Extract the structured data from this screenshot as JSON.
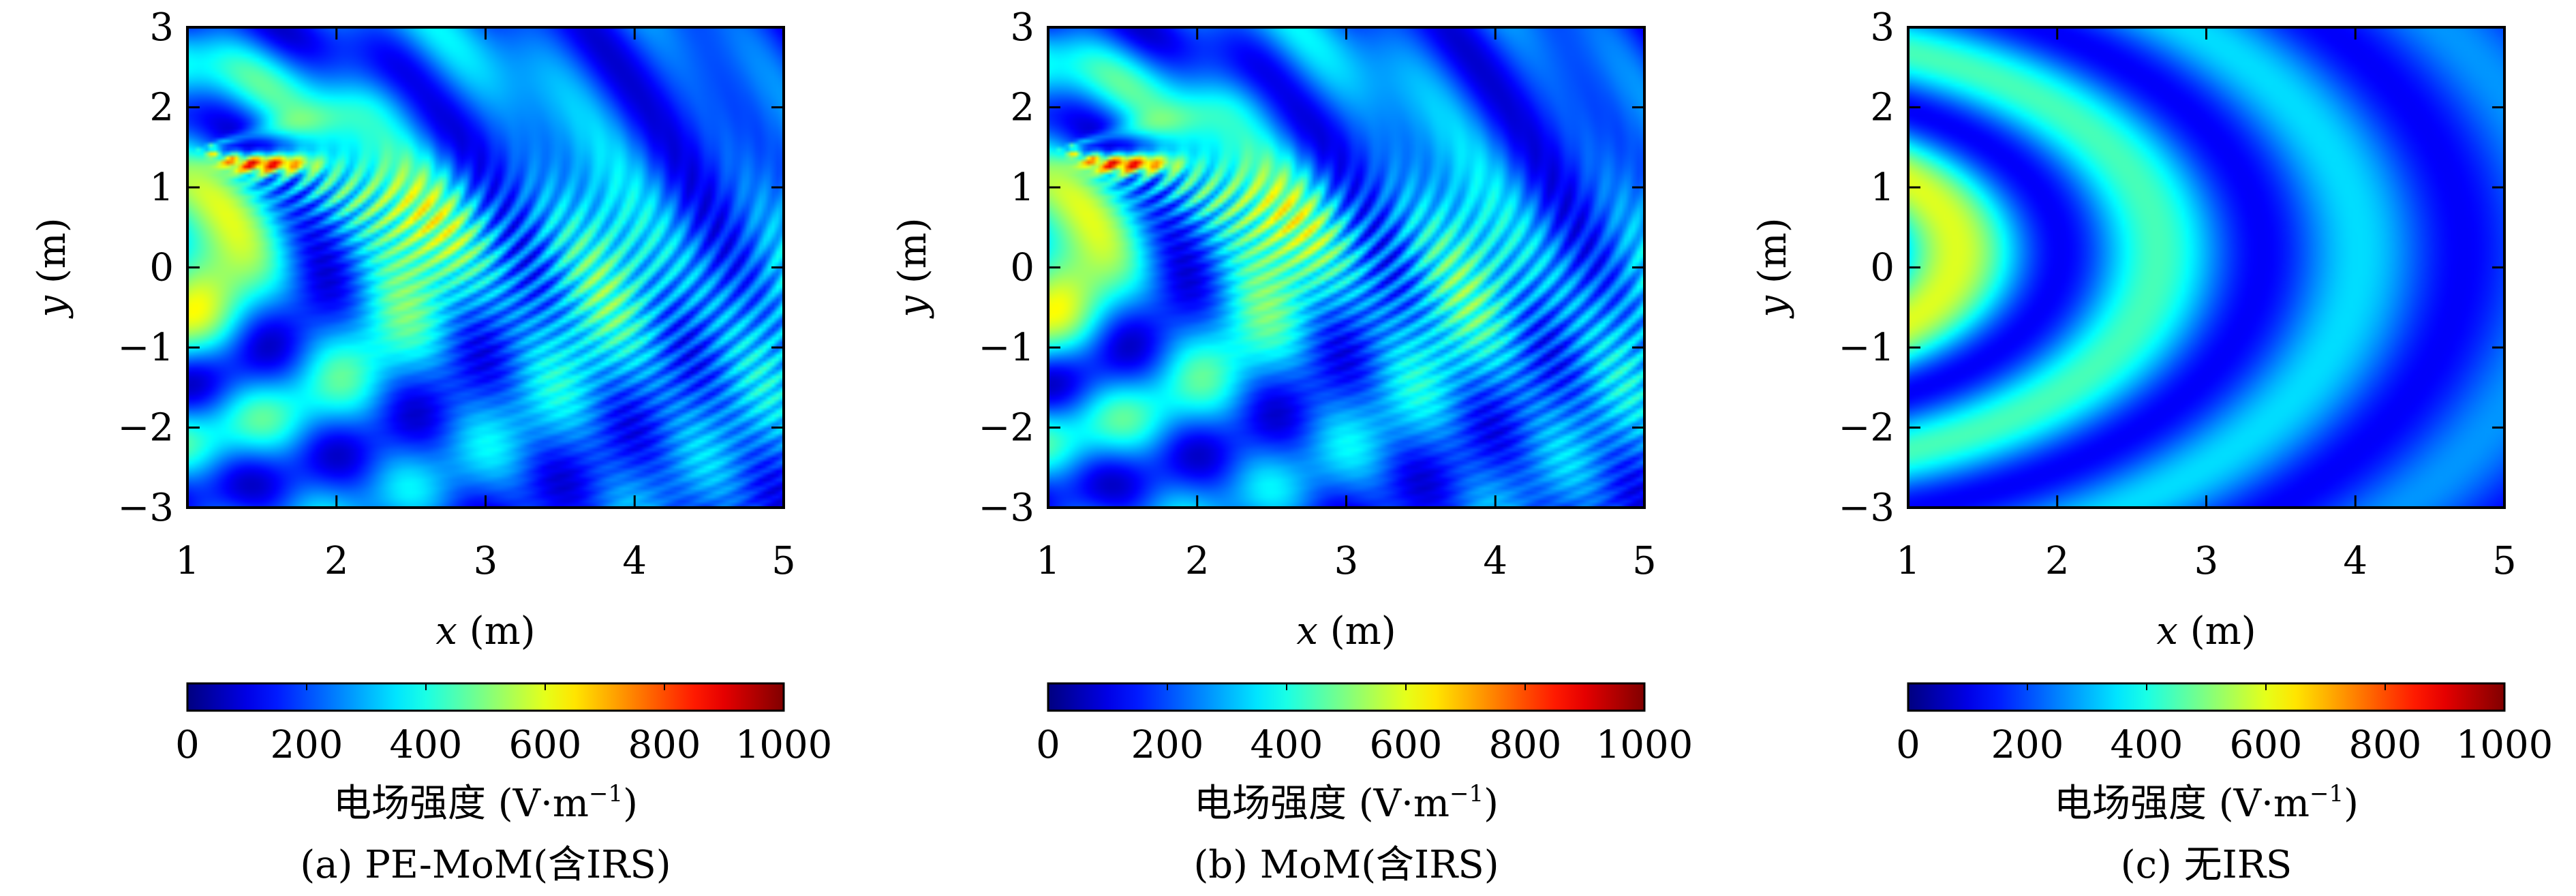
{
  "figure": {
    "panels": [
      {
        "caption": "(a) PE-MoM(含IRS)",
        "field": "irs-full",
        "has_x_axis_labels": true
      },
      {
        "caption": "(b) MoM(含IRS)",
        "field": "irs-full",
        "has_x_axis_labels": true
      },
      {
        "caption": "(c) 无IRS",
        "field": "no-irs",
        "has_x_axis_labels": true
      }
    ]
  },
  "chart_data": [
    {
      "type": "heatmap",
      "title": "",
      "xlabel_var": "x",
      "xlabel_unit": " (m)",
      "ylabel_var": "y",
      "ylabel_unit": " (m)",
      "xlim": [
        1,
        5
      ],
      "ylim": [
        -3,
        3
      ],
      "xticks": [
        "1",
        "2",
        "3",
        "4",
        "5"
      ],
      "yticks": [
        "3",
        "2",
        "1",
        "0",
        "−1",
        "−2",
        "−3"
      ],
      "colorbar": {
        "label_prefix": "电场强度 (V·m",
        "label_exp": "−1",
        "label_suffix": ")",
        "range": [
          0,
          1000
        ],
        "ticks": [
          "0",
          "200",
          "400",
          "600",
          "800",
          "1000"
        ],
        "colormap": "jet"
      },
      "caption": "(a) PE-MoM(含IRS)"
    },
    {
      "type": "heatmap",
      "title": "",
      "xlabel_var": "x",
      "xlabel_unit": " (m)",
      "ylabel_var": "y",
      "ylabel_unit": " (m)",
      "xlim": [
        1,
        5
      ],
      "ylim": [
        -3,
        3
      ],
      "xticks": [
        "1",
        "2",
        "3",
        "4",
        "5"
      ],
      "yticks": [
        "3",
        "2",
        "1",
        "0",
        "−1",
        "−2",
        "−3"
      ],
      "colorbar": {
        "label_prefix": "电场强度 (V·m",
        "label_exp": "−1",
        "label_suffix": ")",
        "range": [
          0,
          1000
        ],
        "ticks": [
          "0",
          "200",
          "400",
          "600",
          "800",
          "1000"
        ],
        "colormap": "jet"
      },
      "caption": "(b) MoM(含IRS)"
    },
    {
      "type": "heatmap",
      "title": "",
      "xlabel_var": "x",
      "xlabel_unit": " (m)",
      "ylabel_var": "y",
      "ylabel_unit": " (m)",
      "xlim": [
        1,
        5
      ],
      "ylim": [
        -3,
        3
      ],
      "xticks": [
        "1",
        "2",
        "3",
        "4",
        "5"
      ],
      "yticks": [
        "3",
        "2",
        "1",
        "0",
        "−1",
        "−2",
        "−3"
      ],
      "colorbar": {
        "label_prefix": "电场强度 (V·m",
        "label_exp": "−1",
        "label_suffix": ")",
        "range": [
          0,
          1000
        ],
        "ticks": [
          "0",
          "200",
          "400",
          "600",
          "800",
          "1000"
        ],
        "colormap": "jet"
      },
      "caption": "(c) 无IRS"
    }
  ]
}
